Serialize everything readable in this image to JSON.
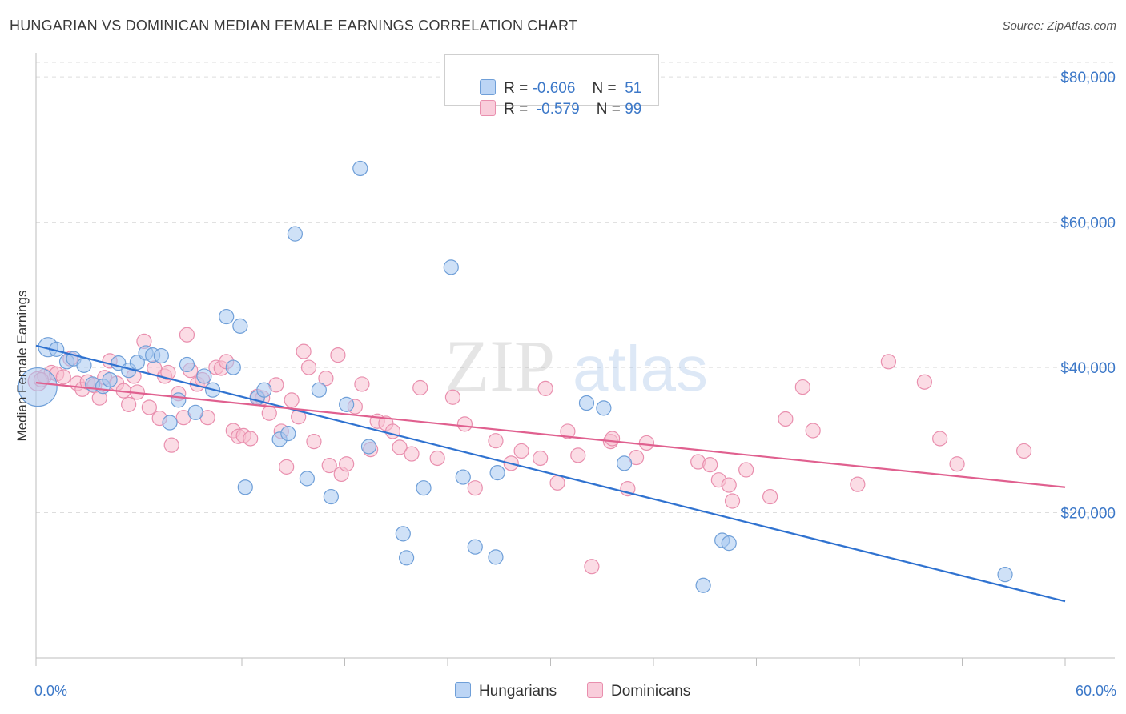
{
  "title": "HUNGARIAN VS DOMINICAN MEDIAN FEMALE EARNINGS CORRELATION CHART",
  "source": "Source: ZipAtlas.com",
  "watermark": {
    "zip": "ZIP",
    "atlas": "atlas"
  },
  "colors": {
    "hungarians_fill": "#a8c8f0",
    "hungarians_stroke": "#6f9fd8",
    "hungarians_line": "#2f72d0",
    "dominicans_fill": "#f7bfd0",
    "dominicans_stroke": "#e98fae",
    "dominicans_line": "#e0608f",
    "axis_label": "#3c78c8",
    "grid": "#dddddd"
  },
  "legend": {
    "r_label": "R =",
    "n_label": "N =",
    "hungarians": {
      "r": "-0.606",
      "n": "51"
    },
    "dominicans": {
      "r": "-0.579",
      "n": "99"
    }
  },
  "bottom_legend": {
    "hungarians": "Hungarians",
    "dominicans": "Dominicans"
  },
  "chart_data": {
    "type": "scatter",
    "title": "HUNGARIAN VS DOMINICAN MEDIAN FEMALE EARNINGS CORRELATION CHART",
    "xlabel": "",
    "ylabel": "Median Female Earnings",
    "xlim": [
      0,
      60
    ],
    "ylim": [
      0,
      82000
    ],
    "x_tick_labels": [
      "0.0%",
      "60.0%"
    ],
    "y_ticks": [
      20000,
      40000,
      60000,
      80000
    ],
    "y_tick_labels": [
      "$20,000",
      "$40,000",
      "$60,000",
      "$80,000"
    ],
    "grid": true,
    "legend_position": "top-center",
    "series": [
      {
        "name": "Hungarians",
        "trend": {
          "x": [
            0,
            60
          ],
          "y": [
            43000,
            7800
          ]
        },
        "points": [
          [
            0.1,
            37300,
            24
          ],
          [
            0.7,
            42800,
            12
          ],
          [
            1.2,
            42500,
            9
          ],
          [
            1.8,
            40800,
            9
          ],
          [
            2.2,
            41200,
            9
          ],
          [
            2.8,
            40300,
            9
          ],
          [
            3.3,
            37700,
            9
          ],
          [
            3.9,
            37400,
            9
          ],
          [
            4.3,
            38300,
            9
          ],
          [
            4.8,
            40600,
            9
          ],
          [
            5.4,
            39600,
            9
          ],
          [
            5.9,
            40700,
            9
          ],
          [
            6.4,
            42000,
            9
          ],
          [
            6.8,
            41700,
            9
          ],
          [
            7.3,
            41600,
            9
          ],
          [
            7.8,
            32400,
            9
          ],
          [
            8.3,
            35500,
            9
          ],
          [
            8.8,
            40400,
            9
          ],
          [
            9.3,
            33800,
            9
          ],
          [
            9.8,
            38800,
            9
          ],
          [
            10.3,
            36900,
            9
          ],
          [
            11.1,
            47000,
            9
          ],
          [
            11.5,
            40000,
            9
          ],
          [
            11.9,
            45700,
            9
          ],
          [
            12.2,
            23500,
            9
          ],
          [
            12.9,
            35800,
            9
          ],
          [
            13.3,
            36900,
            9
          ],
          [
            14.2,
            30100,
            9
          ],
          [
            14.7,
            30900,
            9
          ],
          [
            15.1,
            58400,
            9
          ],
          [
            15.8,
            24700,
            9
          ],
          [
            16.5,
            36900,
            9
          ],
          [
            17.2,
            22200,
            9
          ],
          [
            18.1,
            34900,
            9
          ],
          [
            18.9,
            67400,
            9
          ],
          [
            19.4,
            29100,
            9
          ],
          [
            21.4,
            17100,
            9
          ],
          [
            21.6,
            13800,
            9
          ],
          [
            22.6,
            23400,
            9
          ],
          [
            24.2,
            53800,
            9
          ],
          [
            24.9,
            24900,
            9
          ],
          [
            25.6,
            15300,
            9
          ],
          [
            26.9,
            25500,
            9
          ],
          [
            26.8,
            13900,
            9
          ],
          [
            32.1,
            35100,
            9
          ],
          [
            33.1,
            34400,
            9
          ],
          [
            34.3,
            26800,
            9
          ],
          [
            38.9,
            10000,
            9
          ],
          [
            40.0,
            16200,
            9
          ],
          [
            40.4,
            15800,
            9
          ],
          [
            56.5,
            11500,
            9
          ]
        ]
      },
      {
        "name": "Dominicans",
        "trend": {
          "x": [
            0,
            60
          ],
          "y": [
            37900,
            23500
          ]
        },
        "points": [
          [
            0.1,
            38100,
            12
          ],
          [
            0.5,
            38800,
            9
          ],
          [
            0.9,
            39300,
            9
          ],
          [
            1.2,
            39100,
            9
          ],
          [
            1.6,
            38700,
            9
          ],
          [
            2.0,
            41200,
            9
          ],
          [
            2.4,
            37800,
            9
          ],
          [
            2.7,
            37000,
            9
          ],
          [
            3.0,
            38000,
            9
          ],
          [
            3.4,
            37500,
            9
          ],
          [
            3.7,
            35800,
            9
          ],
          [
            4.0,
            38600,
            9
          ],
          [
            4.3,
            40900,
            9
          ],
          [
            4.7,
            37800,
            9
          ],
          [
            5.1,
            36800,
            9
          ],
          [
            5.4,
            34900,
            9
          ],
          [
            5.7,
            38800,
            9
          ],
          [
            5.9,
            36600,
            9
          ],
          [
            6.3,
            43600,
            9
          ],
          [
            6.6,
            34500,
            9
          ],
          [
            6.9,
            39900,
            9
          ],
          [
            7.2,
            33000,
            9
          ],
          [
            7.5,
            38800,
            9
          ],
          [
            7.7,
            39300,
            9
          ],
          [
            7.9,
            29300,
            9
          ],
          [
            8.3,
            36400,
            9
          ],
          [
            8.6,
            33100,
            9
          ],
          [
            8.8,
            44500,
            9
          ],
          [
            9.0,
            39600,
            9
          ],
          [
            9.4,
            37700,
            9
          ],
          [
            9.7,
            38300,
            9
          ],
          [
            10.0,
            33100,
            9
          ],
          [
            10.5,
            40000,
            9
          ],
          [
            10.8,
            39900,
            9
          ],
          [
            11.1,
            40800,
            9
          ],
          [
            11.5,
            31300,
            9
          ],
          [
            11.8,
            30500,
            9
          ],
          [
            12.1,
            30600,
            9
          ],
          [
            12.5,
            30200,
            9
          ],
          [
            12.9,
            36000,
            9
          ],
          [
            13.2,
            35800,
            9
          ],
          [
            13.6,
            33700,
            9
          ],
          [
            14.0,
            37600,
            9
          ],
          [
            14.3,
            31200,
            9
          ],
          [
            14.6,
            26300,
            9
          ],
          [
            14.9,
            35500,
            9
          ],
          [
            15.3,
            33200,
            9
          ],
          [
            15.6,
            42200,
            9
          ],
          [
            15.9,
            40000,
            9
          ],
          [
            16.2,
            29800,
            9
          ],
          [
            16.9,
            38500,
            9
          ],
          [
            17.1,
            26500,
            9
          ],
          [
            17.6,
            41700,
            9
          ],
          [
            17.8,
            25300,
            9
          ],
          [
            18.1,
            26700,
            9
          ],
          [
            18.6,
            34600,
            9
          ],
          [
            19.0,
            37700,
            9
          ],
          [
            19.5,
            28700,
            9
          ],
          [
            19.9,
            32600,
            9
          ],
          [
            20.4,
            32300,
            9
          ],
          [
            20.8,
            31200,
            9
          ],
          [
            21.2,
            29000,
            9
          ],
          [
            21.9,
            28100,
            9
          ],
          [
            22.4,
            37200,
            9
          ],
          [
            23.4,
            27500,
            9
          ],
          [
            24.3,
            35900,
            9
          ],
          [
            25.0,
            32200,
            9
          ],
          [
            25.6,
            23400,
            9
          ],
          [
            26.8,
            29900,
            9
          ],
          [
            27.7,
            26800,
            9
          ],
          [
            28.3,
            28500,
            9
          ],
          [
            29.4,
            27500,
            9
          ],
          [
            29.7,
            37100,
            9
          ],
          [
            30.4,
            24100,
            9
          ],
          [
            31.0,
            31200,
            9
          ],
          [
            31.6,
            27900,
            9
          ],
          [
            32.4,
            12600,
            9
          ],
          [
            33.5,
            29800,
            9
          ],
          [
            33.6,
            30200,
            9
          ],
          [
            34.5,
            23300,
            9
          ],
          [
            35.0,
            27600,
            9
          ],
          [
            35.6,
            29600,
            9
          ],
          [
            38.6,
            27000,
            9
          ],
          [
            39.3,
            26600,
            9
          ],
          [
            39.8,
            24500,
            9
          ],
          [
            40.4,
            23800,
            9
          ],
          [
            40.6,
            21600,
            9
          ],
          [
            41.4,
            25900,
            9
          ],
          [
            42.8,
            22200,
            9
          ],
          [
            43.7,
            32900,
            9
          ],
          [
            44.7,
            37300,
            9
          ],
          [
            45.3,
            31300,
            9
          ],
          [
            47.9,
            23900,
            9
          ],
          [
            49.7,
            40800,
            9
          ],
          [
            51.8,
            38000,
            9
          ],
          [
            52.7,
            30200,
            9
          ],
          [
            53.7,
            26700,
            9
          ],
          [
            57.6,
            28500,
            9
          ],
          [
            0.3,
            38300,
            9
          ]
        ]
      }
    ]
  }
}
